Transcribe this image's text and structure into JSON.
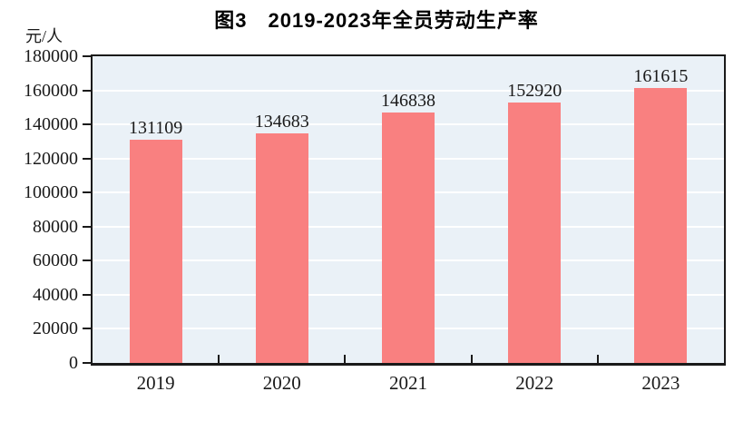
{
  "chart_data": {
    "type": "bar",
    "title": "图3　2019-2023年全员劳动生产率",
    "ylabel": "元/人",
    "xlabel": "",
    "categories": [
      "2019",
      "2020",
      "2021",
      "2022",
      "2023"
    ],
    "values": [
      131109,
      134683,
      146838,
      152920,
      161615
    ],
    "ylim": [
      0,
      180000
    ],
    "ytick_step": 20000,
    "grid": true,
    "legend_position": "none",
    "bar_color": "#F98080",
    "plot_bg": "#EAF1F7",
    "gridline_color": "#FFFFFF",
    "axis_color": "#1A1A1A",
    "label_color": "#1A1A1A"
  }
}
